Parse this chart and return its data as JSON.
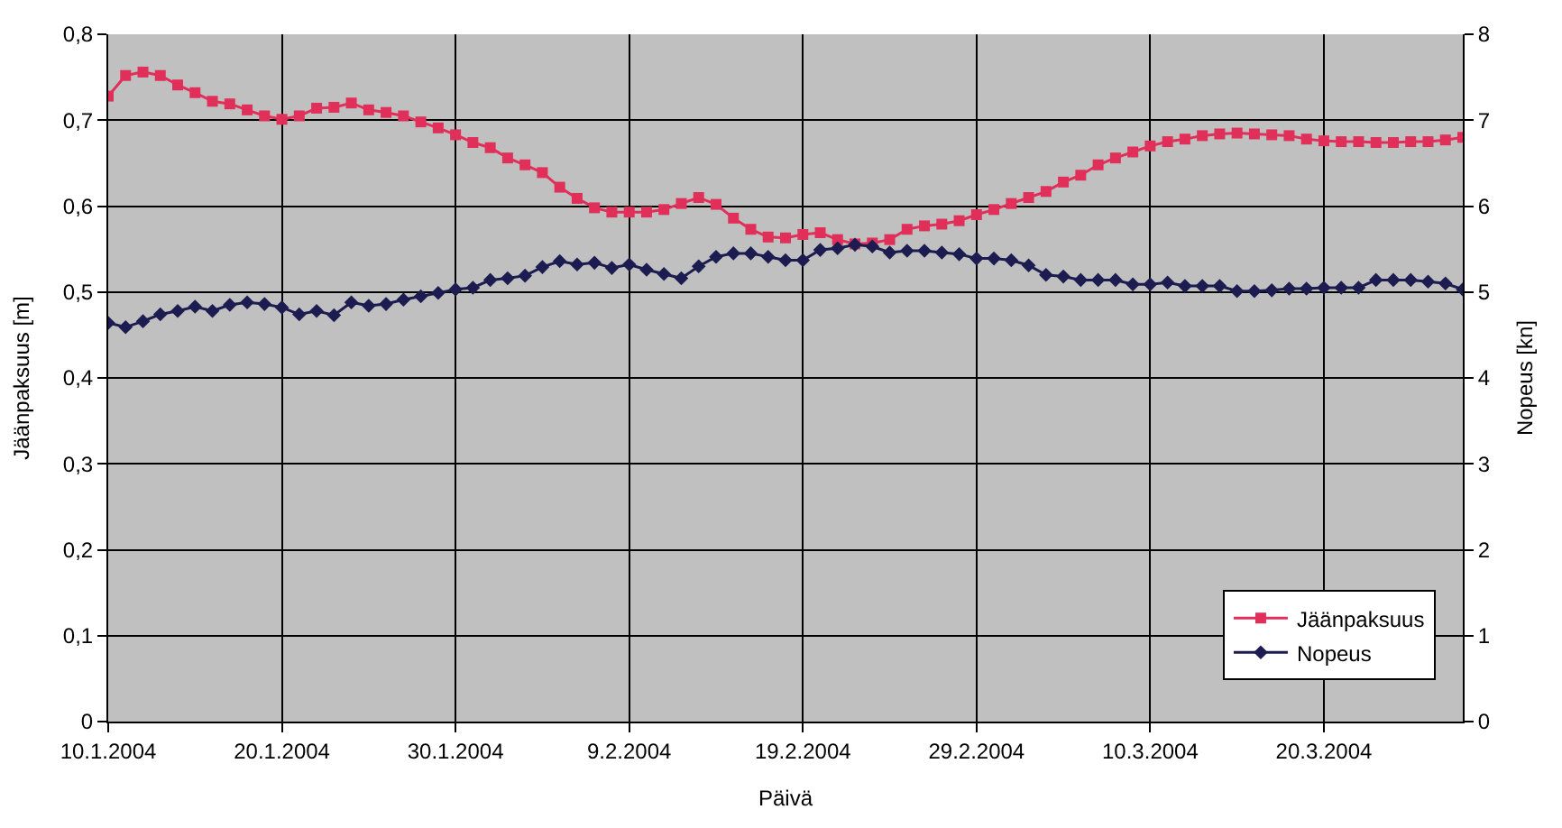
{
  "chart_data": {
    "type": "line",
    "xlabel": "Päivä",
    "ylabel": "Jäänpaksuus [m]",
    "y2label": "Nopeus [kn]",
    "x": [
      "2004-01-10",
      "2004-01-11",
      "2004-01-12",
      "2004-01-13",
      "2004-01-14",
      "2004-01-15",
      "2004-01-16",
      "2004-01-17",
      "2004-01-18",
      "2004-01-19",
      "2004-01-20",
      "2004-01-21",
      "2004-01-22",
      "2004-01-23",
      "2004-01-24",
      "2004-01-25",
      "2004-01-26",
      "2004-01-27",
      "2004-01-28",
      "2004-01-29",
      "2004-01-30",
      "2004-01-31",
      "2004-02-01",
      "2004-02-02",
      "2004-02-03",
      "2004-02-04",
      "2004-02-05",
      "2004-02-06",
      "2004-02-07",
      "2004-02-08",
      "2004-02-09",
      "2004-02-10",
      "2004-02-11",
      "2004-02-12",
      "2004-02-13",
      "2004-02-14",
      "2004-02-15",
      "2004-02-16",
      "2004-02-17",
      "2004-02-18",
      "2004-02-19",
      "2004-02-20",
      "2004-02-21",
      "2004-02-22",
      "2004-02-23",
      "2004-02-24",
      "2004-02-25",
      "2004-02-26",
      "2004-02-27",
      "2004-02-28",
      "2004-02-29",
      "2004-03-01",
      "2004-03-02",
      "2004-03-03",
      "2004-03-04",
      "2004-03-05",
      "2004-03-06",
      "2004-03-07",
      "2004-03-08",
      "2004-03-09",
      "2004-03-10",
      "2004-03-11",
      "2004-03-12",
      "2004-03-13",
      "2004-03-14",
      "2004-03-15",
      "2004-03-16",
      "2004-03-17",
      "2004-03-18",
      "2004-03-19",
      "2004-03-20",
      "2004-03-21",
      "2004-03-22",
      "2004-03-23",
      "2004-03-24",
      "2004-03-25",
      "2004-03-26",
      "2004-03-27",
      "2004-03-28"
    ],
    "series": [
      {
        "name": "Jäänpaksuus",
        "color": "#e0305a",
        "marker": "square",
        "values": [
          0.728,
          0.752,
          0.756,
          0.752,
          0.741,
          0.732,
          0.722,
          0.719,
          0.712,
          0.705,
          0.701,
          0.705,
          0.714,
          0.715,
          0.72,
          0.712,
          0.709,
          0.705,
          0.698,
          0.691,
          0.683,
          0.674,
          0.668,
          0.656,
          0.648,
          0.639,
          0.622,
          0.609,
          0.598,
          0.593,
          0.593,
          0.593,
          0.596,
          0.603,
          0.61,
          0.602,
          0.586,
          0.573,
          0.564,
          0.563,
          0.567,
          0.569,
          0.561,
          0.556,
          0.557,
          0.561,
          0.573,
          0.577,
          0.579,
          0.583,
          0.59,
          0.596,
          0.603,
          0.61,
          0.617,
          0.628,
          0.636,
          0.648,
          0.656,
          0.663,
          0.67,
          0.675,
          0.678,
          0.682,
          0.684,
          0.685,
          0.684,
          0.683,
          0.682,
          0.678,
          0.676,
          0.675,
          0.675,
          0.674,
          0.674,
          0.675,
          0.675,
          0.677,
          0.68
        ]
      },
      {
        "name": "Nopeus",
        "color": "#1c1c50",
        "marker": "diamond",
        "axis": "y2",
        "values": [
          4.64,
          4.59,
          4.66,
          4.74,
          4.78,
          4.83,
          4.78,
          4.85,
          4.88,
          4.86,
          4.82,
          4.74,
          4.78,
          4.73,
          4.88,
          4.84,
          4.86,
          4.91,
          4.95,
          4.99,
          5.03,
          5.05,
          5.14,
          5.16,
          5.19,
          5.29,
          5.36,
          5.32,
          5.34,
          5.28,
          5.32,
          5.26,
          5.21,
          5.16,
          5.3,
          5.41,
          5.45,
          5.45,
          5.41,
          5.37,
          5.37,
          5.49,
          5.51,
          5.55,
          5.53,
          5.46,
          5.48,
          5.48,
          5.46,
          5.44,
          5.39,
          5.39,
          5.37,
          5.31,
          5.2,
          5.18,
          5.14,
          5.14,
          5.14,
          5.09,
          5.09,
          5.11,
          5.07,
          5.07,
          5.07,
          5.01,
          5.01,
          5.02,
          5.04,
          5.04,
          5.05,
          5.05,
          5.05,
          5.14,
          5.14,
          5.14,
          5.12,
          5.1,
          5.03
        ]
      }
    ],
    "xlim": [
      "2004-01-10",
      "2004-03-28"
    ],
    "xticks": [
      {
        "value": "2004-01-10",
        "label": "10.1.2004"
      },
      {
        "value": "2004-01-20",
        "label": "20.1.2004"
      },
      {
        "value": "2004-01-30",
        "label": "30.1.2004"
      },
      {
        "value": "2004-02-09",
        "label": "9.2.2004"
      },
      {
        "value": "2004-02-19",
        "label": "19.2.2004"
      },
      {
        "value": "2004-02-29",
        "label": "29.2.2004"
      },
      {
        "value": "2004-03-10",
        "label": "10.3.2004"
      },
      {
        "value": "2004-03-20",
        "label": "20.3.2004"
      }
    ],
    "ylim": [
      0,
      0.8
    ],
    "yticks": [
      0,
      {
        "value": 0.1,
        "label": "0,1"
      },
      {
        "value": 0.2,
        "label": "0,2"
      },
      {
        "value": 0.3,
        "label": "0,3"
      },
      {
        "value": 0.4,
        "label": "0,4"
      },
      {
        "value": 0.5,
        "label": "0,5"
      },
      {
        "value": 0.6,
        "label": "0,6"
      },
      {
        "value": 0.7,
        "label": "0,7"
      },
      {
        "value": 0.8,
        "label": "0,8"
      }
    ],
    "y2lim": [
      0,
      8
    ],
    "y2ticks": [
      0,
      1,
      2,
      3,
      4,
      5,
      6,
      7,
      8
    ],
    "grid": true,
    "legend": "bottom right",
    "line_style": "solid"
  }
}
